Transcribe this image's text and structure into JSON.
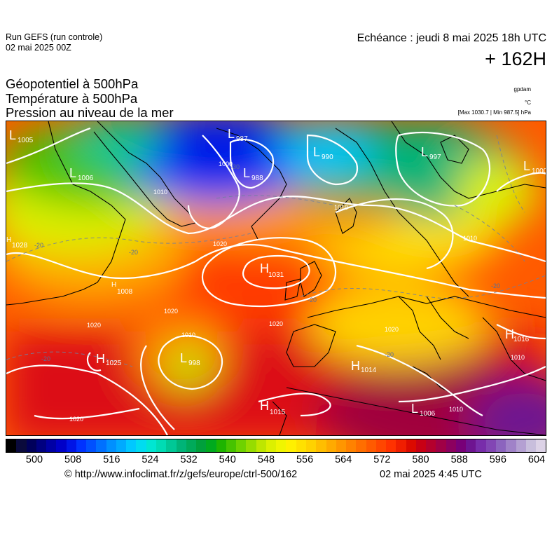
{
  "header": {
    "run_title": "Run GEFS (run controle)",
    "run_date": "02 mai 2025 00Z",
    "valid_time": "Echéance : jeudi 8 mai 2025 18h UTC",
    "lead_time": "+ 162H"
  },
  "params": [
    "Géopotentiel à 500hPa",
    "Température à 500hPa",
    "Pression au niveau de la mer"
  ],
  "units": {
    "geopotential": "gpdam",
    "temperature": "°C",
    "pressure": "[Max 1030.7 | Min 987.5] hPa"
  },
  "colorbar": {
    "ticks": [
      "500",
      "508",
      "516",
      "524",
      "532",
      "540",
      "548",
      "556",
      "564",
      "572",
      "580",
      "588",
      "596",
      "604"
    ],
    "colors": [
      "#000000",
      "#0a0a3c",
      "#00005a",
      "#000080",
      "#0000a5",
      "#0000c8",
      "#0014e6",
      "#0032ff",
      "#0050ff",
      "#0070ff",
      "#0090ff",
      "#00aaff",
      "#00c8ff",
      "#00dcf0",
      "#00e6d2",
      "#00dcb4",
      "#00c896",
      "#00b478",
      "#00aa5a",
      "#00a03c",
      "#00aa1e",
      "#1eb400",
      "#46c300",
      "#6ed200",
      "#96dc00",
      "#bee600",
      "#dcf000",
      "#f0f500",
      "#fff000",
      "#ffe100",
      "#ffd200",
      "#ffbe00",
      "#ffaa00",
      "#ff9600",
      "#ff8200",
      "#ff6e00",
      "#ff5a00",
      "#ff4600",
      "#ff3200",
      "#f01e00",
      "#dc0a00",
      "#c80014",
      "#b4002d",
      "#a00046",
      "#8c005f",
      "#780078",
      "#6e1491",
      "#782daa",
      "#8246b4",
      "#8c64be",
      "#a082c8",
      "#b4a0d2",
      "#c8bedc",
      "#dcd2e6"
    ]
  },
  "map": {
    "pressure_centres": [
      {
        "type": "L",
        "value": "1005"
      },
      {
        "type": "L",
        "value": "1006"
      },
      {
        "type": "L",
        "value": "987"
      },
      {
        "type": "L",
        "value": "988"
      },
      {
        "type": "L",
        "value": "990"
      },
      {
        "type": "L",
        "value": "997"
      },
      {
        "type": "L",
        "value": "1000"
      },
      {
        "type": "H",
        "value": "1031"
      },
      {
        "type": "H",
        "value": "1025"
      },
      {
        "type": "L",
        "value": "998"
      },
      {
        "type": "H",
        "value": "1014"
      },
      {
        "type": "H",
        "value": "1015"
      },
      {
        "type": "L",
        "value": "1006"
      },
      {
        "type": "H",
        "value": "1016"
      },
      {
        "type": "H",
        "value": "1028"
      },
      {
        "type": "H",
        "value": "1008"
      }
    ],
    "isobar_labels": [
      "1000",
      "1010",
      "1010",
      "1010",
      "1020",
      "1020",
      "1020",
      "1020",
      "1010",
      "1020",
      "1010",
      "1010",
      "1020"
    ],
    "isotherm_labels": [
      "-20",
      "-20",
      "-20",
      "-20",
      "-20",
      "-20",
      "-30"
    ]
  },
  "footer": {
    "copyright": "© http://www.infoclimat.fr/z/gefs/europe/ctrl-500/162",
    "issued": "02 mai 2025  4:45 UTC"
  }
}
